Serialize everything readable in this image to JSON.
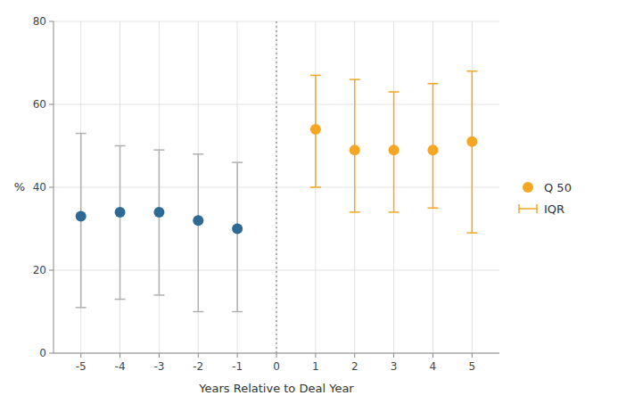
{
  "chart_data": {
    "type": "scatter",
    "x": [
      -5,
      -4,
      -3,
      -2,
      -1,
      1,
      2,
      3,
      4,
      5
    ],
    "series": [
      {
        "name": "Q 50",
        "type": "scatter",
        "marker": "circle",
        "color": "#f5a623",
        "colors": [
          "#2d6a96",
          "#2d6a96",
          "#2d6a96",
          "#2d6a96",
          "#2d6a96",
          "#f5a623",
          "#f5a623",
          "#f5a623",
          "#f5a623",
          "#f5a623"
        ],
        "values": [
          33,
          34,
          34,
          32,
          30,
          54,
          49,
          49,
          49,
          51
        ]
      },
      {
        "name": "IQR",
        "type": "errorbar",
        "color": "#f5a623",
        "colors": [
          "#b0b0b0",
          "#b0b0b0",
          "#b0b0b0",
          "#b0b0b0",
          "#b0b0b0",
          "#f5a623",
          "#f5a623",
          "#f5a623",
          "#f5a623",
          "#f5a623"
        ],
        "low": [
          11,
          13,
          14,
          10,
          10,
          40,
          34,
          34,
          35,
          29
        ],
        "high": [
          53,
          50,
          49,
          48,
          46,
          67,
          66,
          63,
          65,
          68
        ]
      }
    ],
    "vline": 0,
    "x_label": "Years Relative to Deal Year",
    "y_label": "%",
    "xlim": [
      -5.7,
      5.7
    ],
    "xticks": [
      -5,
      -4,
      -3,
      -2,
      -1,
      0,
      1,
      2,
      3,
      4,
      5
    ],
    "ylim": [
      0,
      80
    ],
    "yticks": [
      0,
      20,
      40,
      60,
      80
    ],
    "grid": true,
    "legend": "right"
  }
}
